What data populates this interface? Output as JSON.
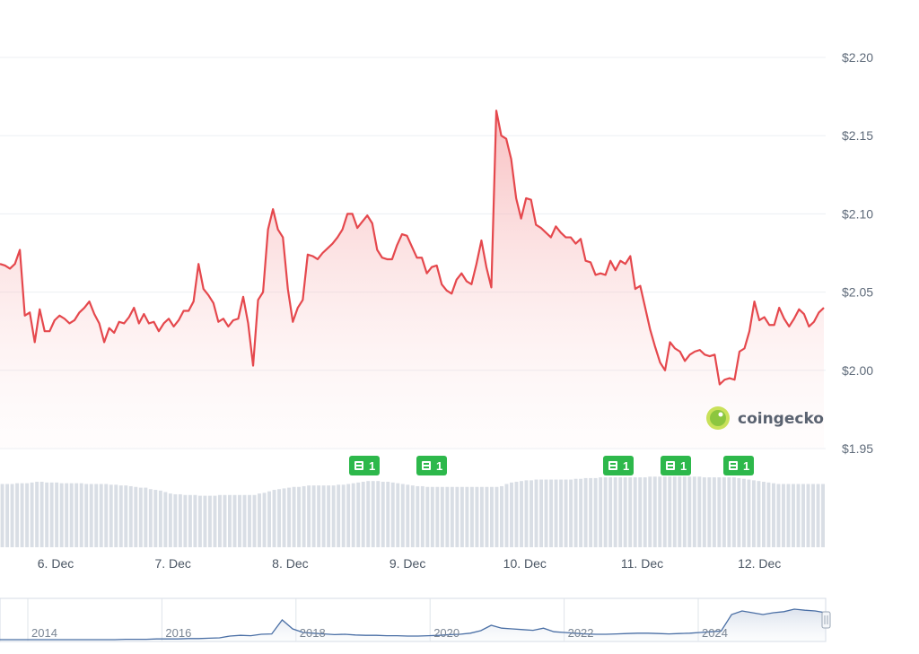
{
  "chart_data": {
    "type": "line",
    "series": [
      {
        "values": [
          2.068,
          2.067,
          2.065,
          2.068,
          2.077,
          2.035,
          2.037,
          2.018,
          2.039,
          2.025,
          2.025,
          2.032,
          2.035,
          2.033,
          2.03,
          2.032,
          2.037,
          2.04,
          2.044,
          2.036,
          2.03,
          2.018,
          2.027,
          2.024,
          2.031,
          2.03,
          2.034,
          2.04,
          2.03,
          2.036,
          2.03,
          2.031,
          2.025,
          2.03,
          2.033,
          2.028,
          2.032,
          2.038,
          2.038,
          2.044,
          2.068,
          2.052,
          2.048,
          2.043,
          2.031,
          2.033,
          2.028,
          2.032,
          2.033,
          2.047,
          2.03,
          2.003,
          2.045,
          2.05,
          2.09,
          2.103,
          2.09,
          2.085,
          2.052,
          2.031,
          2.04,
          2.045,
          2.074,
          2.073,
          2.071,
          2.075,
          2.078,
          2.081,
          2.085,
          2.09,
          2.1,
          2.1,
          2.091,
          2.095,
          2.099,
          2.094,
          2.077,
          2.072,
          2.071,
          2.071,
          2.08,
          2.087,
          2.086,
          2.079,
          2.072,
          2.072,
          2.062,
          2.066,
          2.067,
          2.055,
          2.051,
          2.049,
          2.058,
          2.062,
          2.057,
          2.055,
          2.068,
          2.083,
          2.066,
          2.053,
          2.166,
          2.15,
          2.148,
          2.135,
          2.11,
          2.097,
          2.11,
          2.109,
          2.093,
          2.091,
          2.088,
          2.085,
          2.092,
          2.088,
          2.085,
          2.085,
          2.081,
          2.084,
          2.07,
          2.069,
          2.061,
          2.062,
          2.061,
          2.07,
          2.064,
          2.07,
          2.068,
          2.073,
          2.052,
          2.054,
          2.04,
          2.026,
          2.015,
          2.005,
          2.0,
          2.018,
          2.014,
          2.012,
          2.006,
          2.01,
          2.012,
          2.013,
          2.01,
          2.009,
          2.01,
          1.991,
          1.994,
          1.995,
          1.994,
          2.012,
          2.014,
          2.025,
          2.044,
          2.032,
          2.034,
          2.029,
          2.029,
          2.04,
          2.033,
          2.028,
          2.033,
          2.039,
          2.036,
          2.028,
          2.031,
          2.037,
          2.04
        ]
      }
    ],
    "volume": [
      0.86,
      0.86,
      0.86,
      0.87,
      0.87,
      0.87,
      0.88,
      0.89,
      0.89,
      0.88,
      0.88,
      0.88,
      0.87,
      0.87,
      0.87,
      0.87,
      0.87,
      0.86,
      0.86,
      0.86,
      0.86,
      0.86,
      0.85,
      0.85,
      0.84,
      0.84,
      0.83,
      0.82,
      0.81,
      0.81,
      0.79,
      0.78,
      0.77,
      0.75,
      0.73,
      0.72,
      0.72,
      0.71,
      0.71,
      0.71,
      0.7,
      0.7,
      0.7,
      0.7,
      0.71,
      0.71,
      0.71,
      0.71,
      0.71,
      0.71,
      0.71,
      0.71,
      0.73,
      0.74,
      0.76,
      0.78,
      0.79,
      0.8,
      0.81,
      0.82,
      0.82,
      0.83,
      0.84,
      0.84,
      0.84,
      0.84,
      0.84,
      0.84,
      0.85,
      0.85,
      0.86,
      0.87,
      0.88,
      0.89,
      0.9,
      0.9,
      0.9,
      0.89,
      0.89,
      0.88,
      0.87,
      0.86,
      0.85,
      0.84,
      0.83,
      0.83,
      0.82,
      0.82,
      0.82,
      0.82,
      0.82,
      0.82,
      0.82,
      0.82,
      0.82,
      0.82,
      0.82,
      0.82,
      0.82,
      0.82,
      0.82,
      0.83,
      0.86,
      0.88,
      0.89,
      0.9,
      0.91,
      0.91,
      0.92,
      0.92,
      0.92,
      0.92,
      0.92,
      0.92,
      0.92,
      0.92,
      0.93,
      0.93,
      0.94,
      0.94,
      0.94,
      0.95,
      0.95,
      0.95,
      0.95,
      0.95,
      0.95,
      0.95,
      0.95,
      0.95,
      0.95,
      0.96,
      0.96,
      0.96,
      0.96,
      0.96,
      0.96,
      0.96,
      0.96,
      0.96,
      0.96,
      0.96,
      0.95,
      0.95,
      0.95,
      0.95,
      0.95,
      0.95,
      0.95,
      0.94,
      0.93,
      0.92,
      0.91,
      0.9,
      0.89,
      0.88,
      0.87,
      0.86,
      0.86,
      0.86,
      0.86,
      0.86,
      0.86,
      0.86,
      0.86,
      0.86,
      0.86
    ],
    "x_ticks": [
      "6. Dec",
      "7. Dec",
      "8. Dec",
      "9. Dec",
      "10. Dec",
      "11. Dec",
      "12. Dec"
    ],
    "y_ticks": [
      "$2.20",
      "$2.15",
      "$2.10",
      "$2.05",
      "$2.00",
      "$1.95"
    ],
    "ylim": [
      1.95,
      2.2
    ],
    "grid": true,
    "line_color": "#e5484d",
    "volume_color": "#d9dee5",
    "news_markers": [
      {
        "label": "1",
        "color": "#2db84b"
      },
      {
        "label": "1",
        "color": "#2db84b"
      },
      {
        "label": "1",
        "color": "#2db84b"
      },
      {
        "label": "1",
        "color": "#2db84b"
      },
      {
        "label": "1",
        "color": "#2db84b"
      }
    ],
    "navigator": {
      "ticks": [
        "2014",
        "2016",
        "2018",
        "2020",
        "2022",
        "2024"
      ],
      "values": [
        0.0,
        0.0,
        0.0,
        0.0,
        0.0,
        0.0,
        0.0,
        0.0,
        0.0,
        0.0,
        0.0,
        0.0,
        0.01,
        0.01,
        0.01,
        0.02,
        0.02,
        0.02,
        0.03,
        0.03,
        0.04,
        0.05,
        0.1,
        0.12,
        0.11,
        0.15,
        0.16,
        0.55,
        0.3,
        0.2,
        0.18,
        0.16,
        0.14,
        0.15,
        0.13,
        0.12,
        0.12,
        0.11,
        0.11,
        0.1,
        0.1,
        0.11,
        0.12,
        0.14,
        0.15,
        0.18,
        0.25,
        0.4,
        0.32,
        0.3,
        0.28,
        0.26,
        0.32,
        0.22,
        0.2,
        0.18,
        0.16,
        0.15,
        0.15,
        0.16,
        0.17,
        0.18,
        0.18,
        0.17,
        0.16,
        0.17,
        0.18,
        0.2,
        0.22,
        0.24,
        0.7,
        0.8,
        0.75,
        0.7,
        0.75,
        0.78,
        0.85,
        0.82,
        0.8,
        0.75
      ]
    }
  },
  "watermark": {
    "text": "coingecko"
  }
}
